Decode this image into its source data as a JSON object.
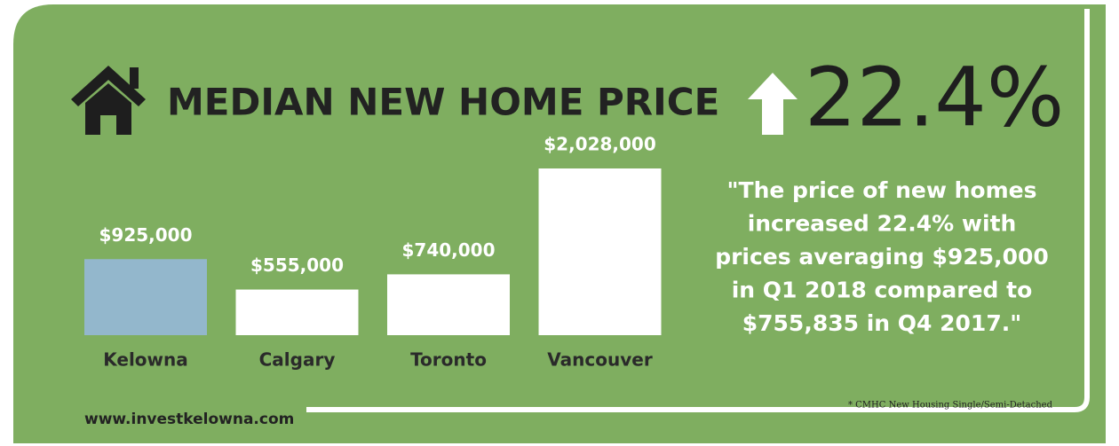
{
  "chart_data": {
    "type": "bar",
    "title": "MEDIAN NEW HOME PRICE",
    "change": "22.4%",
    "categories": [
      "Kelowna",
      "Calgary",
      "Toronto",
      "Vancouver"
    ],
    "values": [
      925000,
      555000,
      740000,
      2028000
    ],
    "value_labels": [
      "$925,000",
      "$555,000",
      "$740,000",
      "$2,028,000"
    ],
    "colors": [
      "#93b7cc",
      "#ffffff",
      "#ffffff",
      "#ffffff"
    ],
    "quote": [
      "\"The price of new homes",
      "increased 22.4% with",
      "prices averaging $925,000",
      "in Q1 2018 compared to",
      "$755,835 in Q4 2017.\""
    ],
    "footnote": "* CMHC New Housing Single/Semi-Detached",
    "website": "www.investkelowna.com"
  }
}
